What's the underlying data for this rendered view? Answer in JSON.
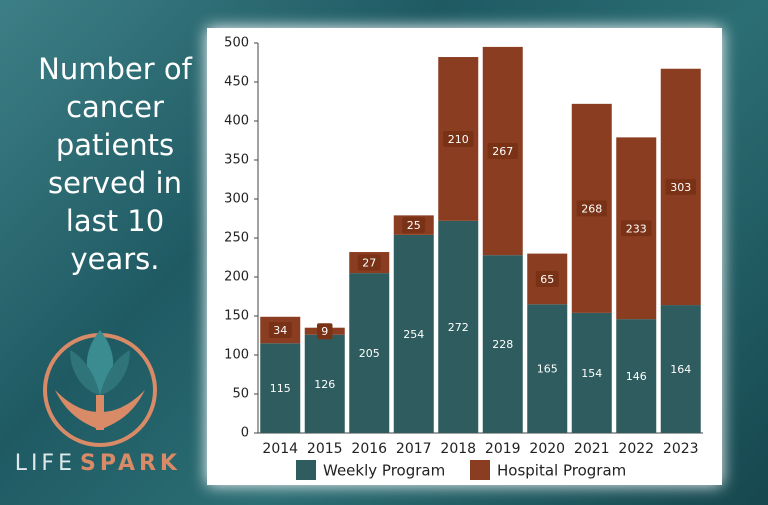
{
  "chart_data": {
    "type": "stacked-bar",
    "title": "Number of cancer patients served in last 10 years.",
    "categories": [
      "2014",
      "2015",
      "2016",
      "2017",
      "2018",
      "2019",
      "2020",
      "2021",
      "2022",
      "2023"
    ],
    "series": [
      {
        "name": "Weekly Program",
        "color": "#2f5c5e",
        "values": [
          115,
          126,
          205,
          254,
          272,
          228,
          165,
          154,
          146,
          164
        ]
      },
      {
        "name": "Hospital Program",
        "color": "#8a3d20",
        "values": [
          34,
          9,
          27,
          25,
          210,
          267,
          65,
          268,
          233,
          303
        ]
      }
    ],
    "ylim": [
      0,
      500
    ],
    "yticks": [
      0,
      50,
      100,
      150,
      200,
      250,
      300,
      350,
      400,
      450,
      500
    ],
    "grid": false
  },
  "logo": {
    "part_1": "LIFE",
    "part_2": "SPARK"
  }
}
